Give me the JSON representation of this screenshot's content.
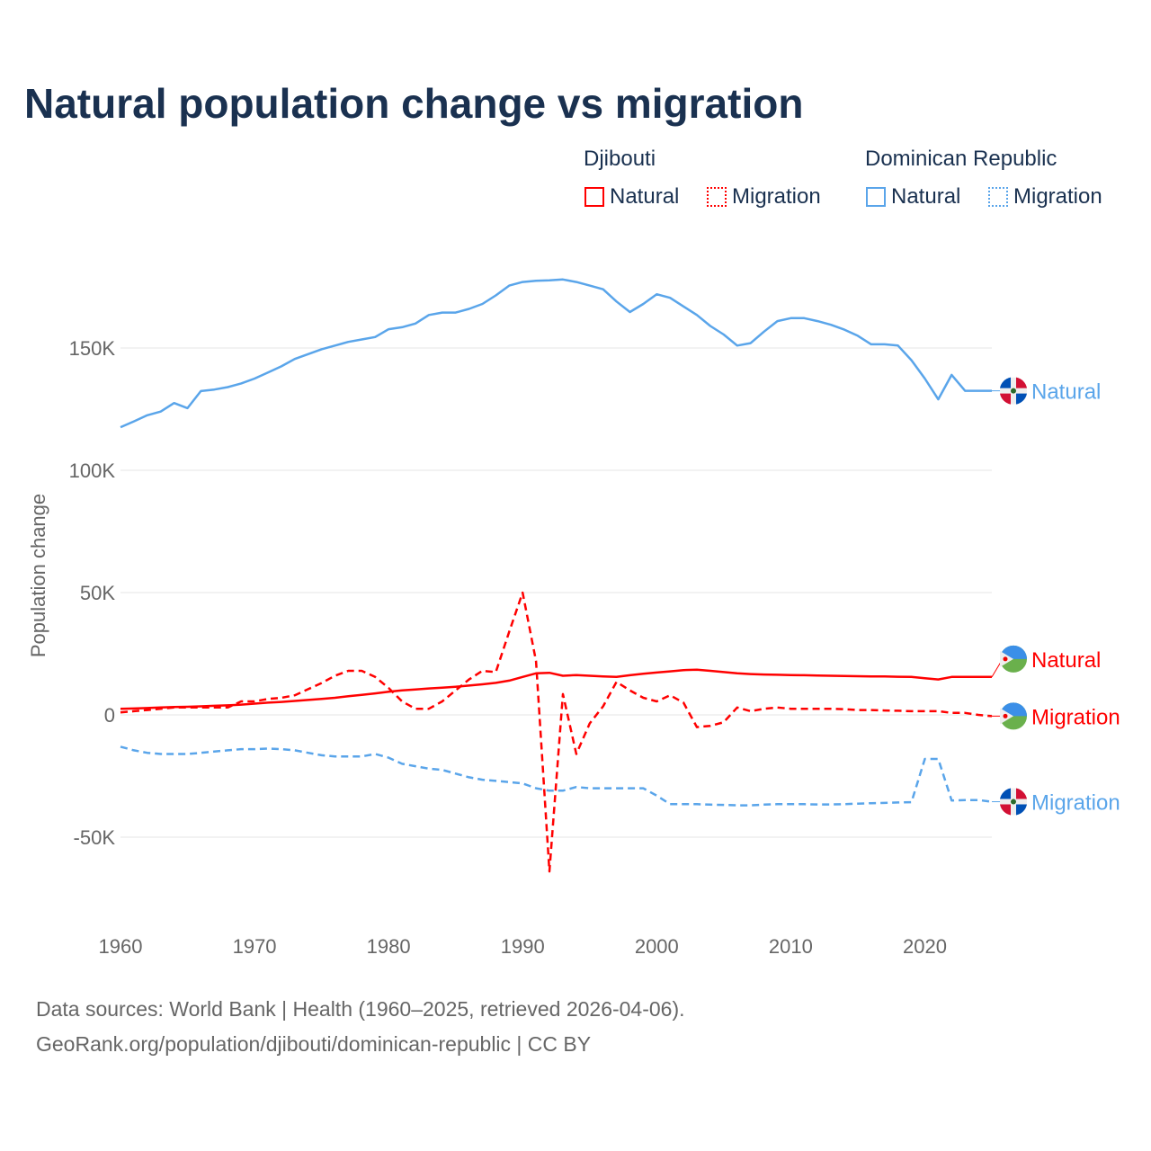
{
  "title": "Natural population change vs migration",
  "legend": {
    "groups": [
      {
        "country": "Djibouti",
        "color": "#ff0000",
        "items": [
          "Natural",
          "Migration"
        ]
      },
      {
        "country": "Dominican Republic",
        "color": "#5aa5ea",
        "items": [
          "Natural",
          "Migration"
        ]
      }
    ]
  },
  "source_line1": "Data sources: World Bank | Health (1960–2025, retrieved 2026-04-06).",
  "source_line2": "GeoRank.org/population/djibouti/dominican-republic | CC BY",
  "chart_data": {
    "type": "line",
    "title": "Natural population change vs migration",
    "xlabel": "",
    "ylabel": "Population change",
    "xlim": [
      1960,
      2025
    ],
    "ylim": [
      -70000,
      200000
    ],
    "xticks": [
      1960,
      1970,
      1980,
      1990,
      2000,
      2010,
      2020
    ],
    "yticks": [
      {
        "v": -50000,
        "label": "-50K"
      },
      {
        "v": 0,
        "label": "0"
      },
      {
        "v": 50000,
        "label": "50K"
      },
      {
        "v": 100000,
        "label": "100K"
      },
      {
        "v": 150000,
        "label": "150K"
      }
    ],
    "x_start": 1960,
    "series": [
      {
        "name": "Dominican Republic Natural",
        "label": "Natural",
        "color": "#5aa5ea",
        "dash": false,
        "flag": "dominican-republic",
        "values": [
          117.6,
          120,
          122.5,
          124,
          127.5,
          125.4,
          132.4,
          133,
          134,
          135.5,
          137.5,
          140,
          142.5,
          145.5,
          147.5,
          149.5,
          151,
          152.5,
          153.5,
          154.5,
          157.7,
          158.5,
          160,
          163.5,
          164.5,
          164.5,
          166,
          168,
          171.5,
          175.5,
          177,
          177.5,
          177.7,
          178,
          177,
          175.5,
          174,
          169,
          164.7,
          168,
          172,
          170.5,
          167,
          163.5,
          159,
          155.5,
          151,
          152,
          156.7,
          161,
          162.2,
          162.2,
          161,
          159.5,
          157.5,
          155,
          151.5,
          151.5,
          151,
          145,
          137.5,
          129,
          139,
          132.5,
          132.5,
          132.5
        ]
      },
      {
        "name": "Djibouti Natural",
        "label": "Natural",
        "color": "#ff0000",
        "dash": false,
        "flag": "djibouti",
        "values": [
          2.5,
          2.6,
          2.8,
          3,
          3.2,
          3.3,
          3.5,
          3.7,
          3.9,
          4.2,
          4.6,
          5,
          5.3,
          5.7,
          6.1,
          6.5,
          7,
          7.6,
          8.2,
          8.8,
          9.5,
          10,
          10.4,
          10.8,
          11.1,
          11.5,
          12,
          12.5,
          13.1,
          14,
          15.5,
          17,
          17.2,
          16,
          16.3,
          16,
          15.7,
          15.5,
          16.2,
          16.8,
          17.3,
          17.8,
          18.3,
          18.5,
          18,
          17.5,
          17,
          16.7,
          16.5,
          16.4,
          16.3,
          16.2,
          16.1,
          16,
          15.9,
          15.8,
          15.7,
          15.7,
          15.6,
          15.5,
          15,
          14.5,
          15.5,
          15.5,
          15.5,
          15.5
        ]
      },
      {
        "name": "Djibouti Migration",
        "label": "Migration",
        "color": "#ff0000",
        "dash": true,
        "flag": "djibouti",
        "values": [
          1,
          1.5,
          2,
          2.5,
          3,
          3,
          3,
          3,
          3,
          5.5,
          5.5,
          6.5,
          7,
          8,
          10.5,
          13,
          16,
          18,
          18,
          15.5,
          11,
          5.5,
          2.5,
          2.5,
          5.5,
          10,
          14.5,
          18,
          17.5,
          34,
          50,
          22,
          -64,
          8.5,
          -16,
          -3.5,
          3.5,
          13.5,
          10,
          7,
          5.5,
          8,
          5,
          -5,
          -4.5,
          -3,
          3,
          1.5,
          2.5,
          3,
          2.5,
          2.5,
          2.5,
          2.5,
          2.3,
          2,
          2,
          1.8,
          1.7,
          1.5,
          1.5,
          1.5,
          0.8,
          0.8,
          0,
          -0.5
        ]
      },
      {
        "name": "Dominican Republic Migration",
        "label": "Migration",
        "color": "#5aa5ea",
        "dash": true,
        "flag": "dominican-republic",
        "values": [
          -13,
          -14.5,
          -15.5,
          -16,
          -16,
          -16,
          -15.5,
          -15,
          -14.5,
          -14,
          -14,
          -13.8,
          -14,
          -14.5,
          -15.5,
          -16.5,
          -17,
          -17,
          -17,
          -16,
          -17.5,
          -20,
          -21,
          -22,
          -22.5,
          -24,
          -25.5,
          -26.5,
          -27,
          -27.5,
          -28,
          -30,
          -31,
          -31,
          -29.5,
          -30,
          -30,
          -30,
          -30,
          -30,
          -33,
          -36.5,
          -36.5,
          -36.5,
          -36.7,
          -36.8,
          -37,
          -37,
          -36.7,
          -36.5,
          -36.5,
          -36.5,
          -36.6,
          -36.6,
          -36.5,
          -36.3,
          -36.1,
          -36,
          -35.8,
          -35.7,
          -18,
          -18,
          -35,
          -34.8,
          -34.8,
          -35.5
        ]
      }
    ]
  }
}
